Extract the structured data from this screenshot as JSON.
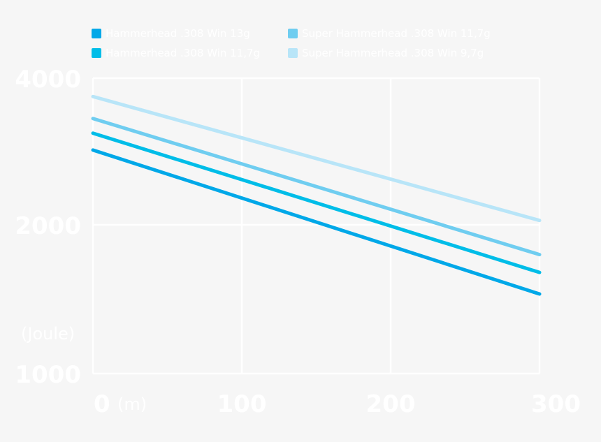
{
  "chart_data": {
    "type": "line",
    "title": "",
    "xlabel": "(m)",
    "ylabel": "(Joule)",
    "x": [
      0,
      300
    ],
    "xlim": [
      0,
      300
    ],
    "ylim": [
      1000,
      4000
    ],
    "y_scale": "custom-nonlinear",
    "x_ticks": [
      0,
      100,
      200,
      300
    ],
    "y_ticks": [
      1000,
      2000,
      4000
    ],
    "x_tick_labels": [
      "0",
      "100",
      "200",
      "300"
    ],
    "y_tick_labels": [
      "1000",
      "2000",
      "4000"
    ],
    "grid": true,
    "legend_position": "top",
    "series": [
      {
        "name": "Hammerhead .308 Win 13g",
        "color": "#00a8e8",
        "values": [
          3020,
          1535
        ]
      },
      {
        "name": "Hammerhead .308 Win 11,7g",
        "color": "#00bde8",
        "values": [
          3250,
          1680
        ]
      },
      {
        "name": "Super Hammerhead .308 Win 11,7g",
        "color": "#6fcdf0",
        "values": [
          3450,
          1800
        ]
      },
      {
        "name": "Super Hammerhead .308 Win 9,7g",
        "color": "#b8e5f8",
        "values": [
          3750,
          2060
        ]
      }
    ]
  }
}
